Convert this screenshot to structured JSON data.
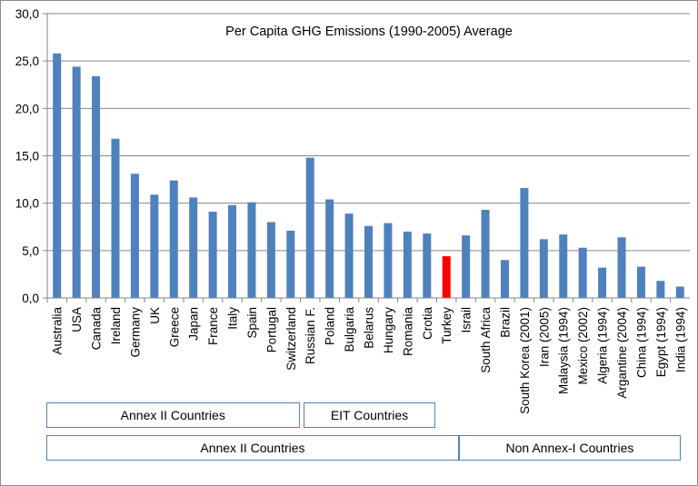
{
  "chart_data": {
    "type": "bar",
    "title": "Per Capita GHG Emissions (1990-2005) Average",
    "xlabel": "",
    "ylabel": "",
    "ylim": [
      0,
      30
    ],
    "yticks": [
      "0,0",
      "5,0",
      "10,0",
      "15,0",
      "20,0",
      "25,0",
      "30,0"
    ],
    "grid": "horizontal",
    "bar_color": "#4f81bd",
    "highlight_color": "#ff0000",
    "highlight_category": "Turkey",
    "categories": [
      "Australia",
      "USA",
      "Canada",
      "Ireland",
      "Germany",
      "UK",
      "Greece",
      "Japan",
      "France",
      "Italy",
      "Spain",
      "Portugal",
      "Switzerland",
      "Russian F.",
      "Poland",
      "Bulgaria",
      "Belarus",
      "Hungary",
      "Romania",
      "Crotia",
      "Turkey",
      "Israil",
      "South Africa",
      "Brazil",
      "South Korea (2001)",
      "Iran (2005)",
      "Malaysia (1994)",
      "Mexico (2002)",
      "Algeria (1994)",
      "Argantine (2004)",
      "China (1994)",
      "Egypt (1994)",
      "India (1994)"
    ],
    "values": [
      25.8,
      24.4,
      23.4,
      16.8,
      13.1,
      10.9,
      12.4,
      10.6,
      9.1,
      9.8,
      10.1,
      8.0,
      7.1,
      14.8,
      10.4,
      8.9,
      7.6,
      7.9,
      7.0,
      6.8,
      4.4,
      6.6,
      9.3,
      4.0,
      11.6,
      6.2,
      6.7,
      5.3,
      3.2,
      6.4,
      3.3,
      1.8,
      1.2
    ],
    "groups_row1": [
      {
        "label": "Annex II Countries",
        "start_index": 0,
        "end_index": 12
      },
      {
        "label": "EIT Countries",
        "start_index": 13,
        "end_index": 19
      }
    ],
    "groups_row2": [
      {
        "label": "Annex II Countries",
        "start_index": 0,
        "end_index": 20
      },
      {
        "label": "Non Annex-I Countries",
        "start_index": 21,
        "end_index": 32
      }
    ]
  }
}
